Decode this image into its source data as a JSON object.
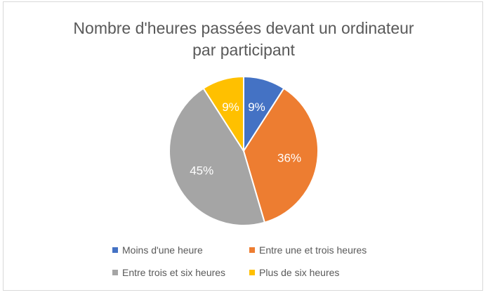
{
  "chart_data": {
    "type": "pie",
    "title": "Nombre d'heures passées devant un ordinateur\npar participant",
    "categories": [
      "Moins d'une heure",
      "Entre une et trois heures",
      "Entre trois et six heures",
      "Plus de six heures"
    ],
    "values": [
      9,
      36,
      45,
      9
    ],
    "labels": [
      "9%",
      "36%",
      "45%",
      "9%"
    ],
    "colors": [
      "#4472c4",
      "#ed7d31",
      "#a5a5a5",
      "#ffc000"
    ],
    "legend_position": "bottom"
  }
}
